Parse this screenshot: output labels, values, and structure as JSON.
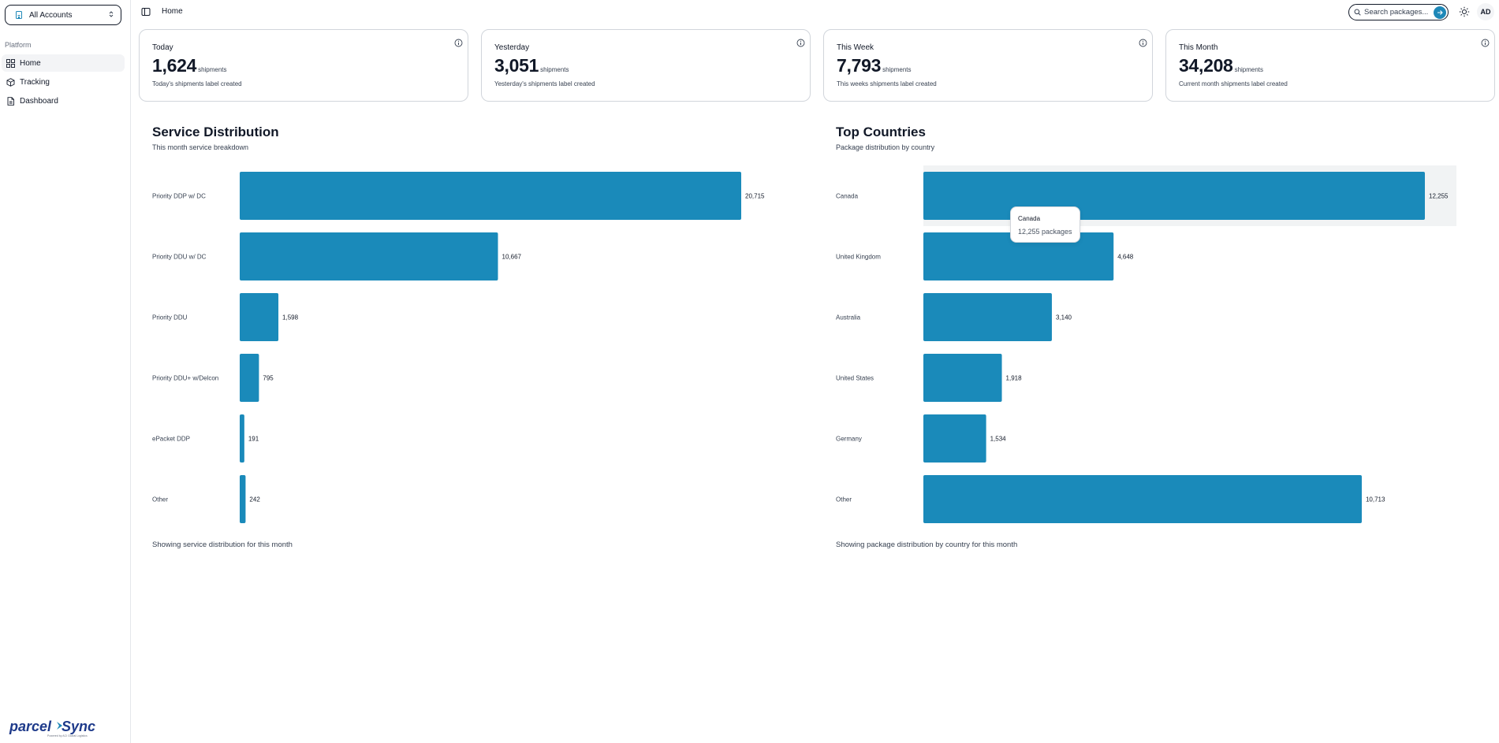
{
  "sidebar": {
    "account_label": "All Accounts",
    "group_label": "Platform",
    "items": [
      {
        "label": "Home",
        "icon": "grid-icon",
        "active": true
      },
      {
        "label": "Tracking",
        "icon": "box-icon",
        "active": false
      },
      {
        "label": "Dashboard",
        "icon": "document-icon",
        "active": false
      }
    ],
    "logo_text": "parcelSync",
    "logo_tagline": "Powered by ACI Global Logistics"
  },
  "header": {
    "breadcrumb": "Home",
    "search_placeholder": "Search packages...",
    "avatar_initials": "AD"
  },
  "cards": [
    {
      "title": "Today",
      "value": "1,624",
      "unit": "shipments",
      "desc": "Today's shipments label created"
    },
    {
      "title": "Yesterday",
      "value": "3,051",
      "unit": "shipments",
      "desc": "Yesterday's shipments label created"
    },
    {
      "title": "This Week",
      "value": "7,793",
      "unit": "shipments",
      "desc": "This weeks shipments label created"
    },
    {
      "title": "This Month",
      "value": "34,208",
      "unit": "shipments",
      "desc": "Current month shipments label created"
    }
  ],
  "colors": {
    "bar": "#1a8aba",
    "accent": "#1e88b8",
    "hover_band": "#f1f3f4"
  },
  "chart_data": [
    {
      "type": "bar",
      "orientation": "horizontal",
      "title": "Service Distribution",
      "subtitle": "This month service breakdown",
      "footer": "Showing service distribution for this month",
      "categories": [
        "Priority DDP w/ DC",
        "Priority DDU w/ DC",
        "Priority DDU",
        "Priority DDU+ w/Delcon",
        "ePacket DDP",
        "Other"
      ],
      "values": [
        20715,
        10667,
        1598,
        795,
        191,
        242
      ],
      "value_labels": [
        "20,715",
        "10,667",
        "1,598",
        "795",
        "191",
        "242"
      ],
      "xlim": [
        0,
        20715
      ]
    },
    {
      "type": "bar",
      "orientation": "horizontal",
      "title": "Top Countries",
      "subtitle": "Package distribution by country",
      "footer": "Showing package distribution by country for this month",
      "categories": [
        "Canada",
        "United Kingdom",
        "Australia",
        "United States",
        "Germany",
        "Other"
      ],
      "values": [
        12255,
        4648,
        3140,
        1918,
        1534,
        10713
      ],
      "value_labels": [
        "12,255",
        "4,648",
        "3,140",
        "1,918",
        "1,534",
        "10,713"
      ],
      "xlim": [
        0,
        12255
      ],
      "hovered_index": 0,
      "tooltip": {
        "label": "Canada",
        "value": "12,255 packages"
      }
    }
  ]
}
